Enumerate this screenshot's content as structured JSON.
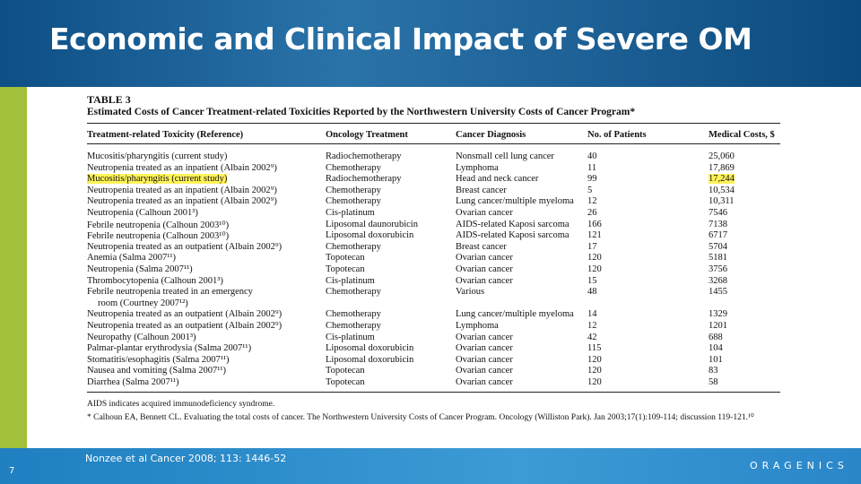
{
  "header": {
    "title": "Economic and Clinical Impact of Severe OM"
  },
  "table": {
    "label": "TABLE 3",
    "caption": "Estimated Costs of Cancer Treatment-related Toxicities Reported by the Northwestern University Costs of Cancer Program*",
    "columns": [
      "Treatment-related Toxicity (Reference)",
      "Oncology Treatment",
      "Cancer Diagnosis",
      "No. of Patients",
      "Medical Costs, $"
    ],
    "rows": [
      [
        "Mucositis/pharyngitis (current study)",
        "Radiochemotherapy",
        "Nonsmall cell lung cancer",
        "40",
        "25,060"
      ],
      [
        "Neutropenia treated as an inpatient (Albain 2002⁹)",
        "Chemotherapy",
        "Lymphoma",
        "11",
        "17,869"
      ],
      [
        "Mucositis/pharyngitis (current study)",
        "Radiochemotherapy",
        "Head and neck cancer",
        "99",
        "17,244"
      ],
      [
        "Neutropenia treated as an inpatient (Albain 2002⁹)",
        "Chemotherapy",
        "Breast cancer",
        "5",
        "10,534"
      ],
      [
        "Neutropenia treated as an inpatient (Albain 2002⁹)",
        "Chemotherapy",
        "Lung cancer/multiple myeloma",
        "12",
        "10,311"
      ],
      [
        "Neutropenia (Calhoun 2001³)",
        "Cis-platinum",
        "Ovarian cancer",
        "26",
        "7546"
      ],
      [
        "Febrile neutropenia (Calhoun 2003¹⁰)",
        "Liposomal daunorubicin",
        "AIDS-related Kaposi sarcoma",
        "166",
        "7138"
      ],
      [
        "Febrile neutropenia (Calhoun 2003¹⁰)",
        "Liposomal doxorubicin",
        "AIDS-related Kaposi sarcoma",
        "121",
        "6717"
      ],
      [
        "Neutropenia treated as an outpatient (Albain 2002⁹)",
        "Chemotherapy",
        "Breast cancer",
        "17",
        "5704"
      ],
      [
        "Anemia (Salma 2007¹¹)",
        "Topotecan",
        "Ovarian cancer",
        "120",
        "5181"
      ],
      [
        "Neutropenia (Salma 2007¹¹)",
        "Topotecan",
        "Ovarian cancer",
        "120",
        "3756"
      ],
      [
        "Thrombocytopenia (Calhoun 2001³)",
        "Cis-platinum",
        "Ovarian cancer",
        "15",
        "3268"
      ],
      [
        [
          "Febrile neutropenia treated in an emergency",
          "room (Courtney 2007¹²)"
        ],
        "Chemotherapy",
        "Various",
        "48",
        "1455"
      ],
      [
        "Neutropenia treated as an outpatient (Albain 2002⁹)",
        "Chemotherapy",
        "Lung cancer/multiple myeloma",
        "14",
        "1329"
      ],
      [
        "Neutropenia treated as an outpatient (Albain 2002⁹)",
        "Chemotherapy",
        "Lymphoma",
        "12",
        "1201"
      ],
      [
        "Neuropathy (Calhoun 2001³)",
        "Cis-platinum",
        "Ovarian cancer",
        "42",
        "688"
      ],
      [
        "Palmar-plantar erythrodysia (Salma 2007¹¹)",
        "Liposomal doxorubicin",
        "Ovarian cancer",
        "115",
        "104"
      ],
      [
        "Stomatitis/esophagitis (Salma 2007¹¹)",
        "Liposomal doxorubicin",
        "Ovarian cancer",
        "120",
        "101"
      ],
      [
        "Nausea and vomiting (Salma 2007¹¹)",
        "Topotecan",
        "Ovarian cancer",
        "120",
        "83"
      ],
      [
        "Diarrhea (Salma 2007¹¹)",
        "Topotecan",
        "Ovarian cancer",
        "120",
        "58"
      ]
    ],
    "footnotes": [
      "AIDS indicates acquired immunodeficiency syndrome.",
      "* Calhoun EA, Bennett CL. Evaluating the total costs of cancer. The Northwestern University Costs of Cancer Program. Oncology (Williston Park). Jan 2003;17(1):109-114; discussion 119-121.¹⁰"
    ]
  },
  "footer": {
    "citation": "Nonzee et al Cancer 2008; 113: 1446-52",
    "page": "7",
    "logo": "ORAGENICS"
  }
}
